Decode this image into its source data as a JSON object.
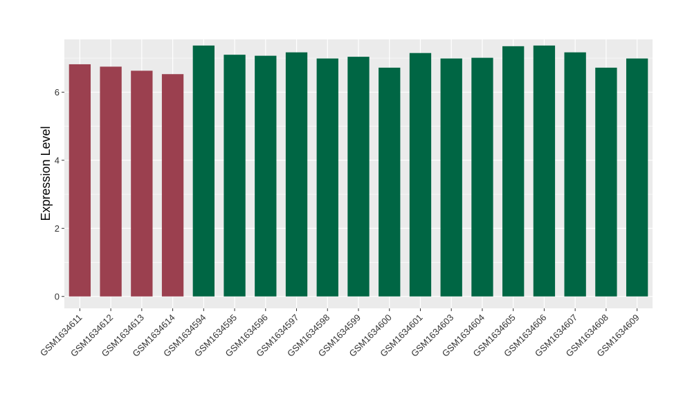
{
  "chart_data": {
    "type": "bar",
    "title": "",
    "xlabel": "",
    "ylabel": "Expression Level",
    "ylim": [
      -0.35,
      7.55
    ],
    "yticks": [
      0,
      2,
      4,
      6
    ],
    "grid": true,
    "categories": [
      "GSM1634611",
      "GSM1634612",
      "GSM1634613",
      "GSM1634614",
      "GSM1634594",
      "GSM1634595",
      "GSM1634596",
      "GSM1634597",
      "GSM1634598",
      "GSM1634599",
      "GSM1634600",
      "GSM1634601",
      "GSM1634603",
      "GSM1634604",
      "GSM1634605",
      "GSM1634606",
      "GSM1634607",
      "GSM1634608",
      "GSM1634609"
    ],
    "values": [
      6.82,
      6.75,
      6.63,
      6.53,
      7.37,
      7.1,
      7.07,
      7.17,
      6.99,
      7.04,
      6.72,
      7.15,
      6.99,
      7.01,
      7.35,
      7.37,
      7.17,
      6.72,
      6.99
    ],
    "groups": [
      "a",
      "a",
      "a",
      "a",
      "b",
      "b",
      "b",
      "b",
      "b",
      "b",
      "b",
      "b",
      "b",
      "b",
      "b",
      "b",
      "b",
      "b",
      "b"
    ],
    "colors": {
      "a": "#9b404f",
      "b": "#006644"
    },
    "panel_background": "#ebebeb",
    "gridline_color": "#ffffff"
  }
}
